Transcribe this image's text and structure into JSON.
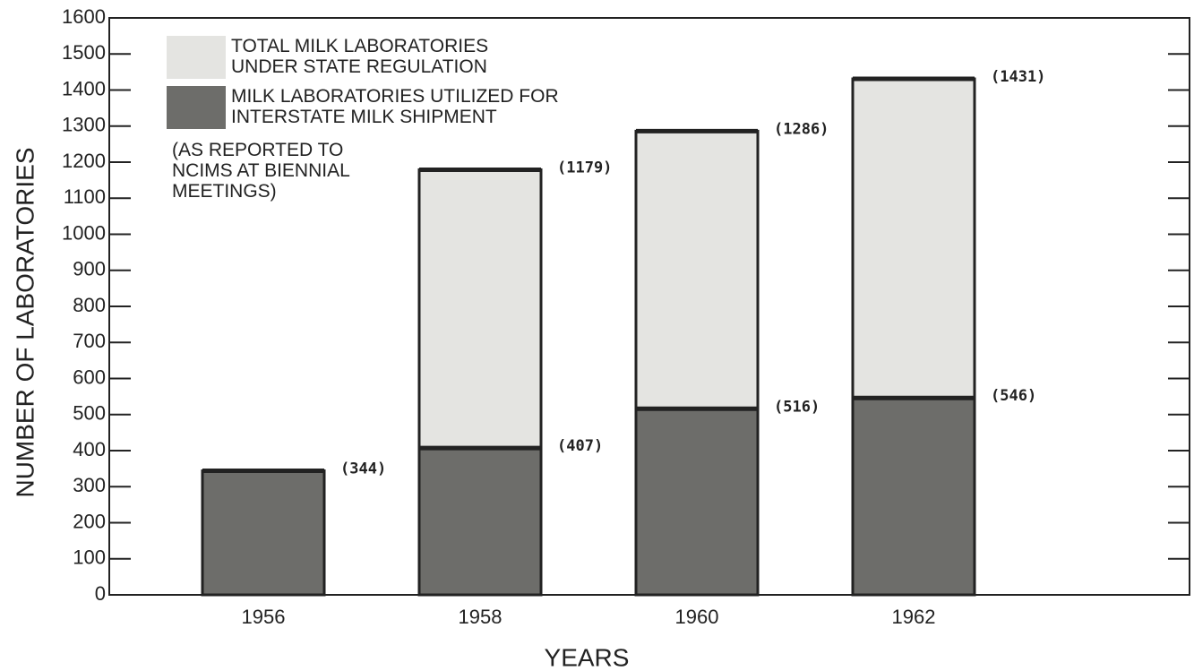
{
  "chart_data": {
    "type": "overlapped_bar",
    "x_label": "YEARS",
    "y_label": "NUMBER OF LABORATORIES",
    "annotation": "(AS REPORTED TO NCIMS AT BIENNIAL MEETINGS)",
    "categories": [
      "1956",
      "1958",
      "1960",
      "1962"
    ],
    "series": [
      {
        "name": "TOTAL MILK LABORATORIES UNDER STATE REGULATION",
        "color": "#e4e4e1",
        "values": [
          null,
          1179,
          1286,
          1431
        ],
        "value_labels": [
          null,
          "(1179)",
          "(1286)",
          "(1431)"
        ]
      },
      {
        "name": "MILK LABORATORIES UTILIZED FOR INTERSTATE MILK SHIPMENT",
        "color": "#6d6d6a",
        "values": [
          344,
          407,
          516,
          546
        ],
        "value_labels": [
          "(344)",
          "(407)",
          "(516)",
          "(546)"
        ]
      }
    ],
    "ylim": [
      0,
      1600
    ],
    "yticks": [
      0,
      100,
      200,
      300,
      400,
      500,
      600,
      700,
      800,
      900,
      1000,
      1100,
      1200,
      1300,
      1400,
      1500,
      1600
    ]
  }
}
